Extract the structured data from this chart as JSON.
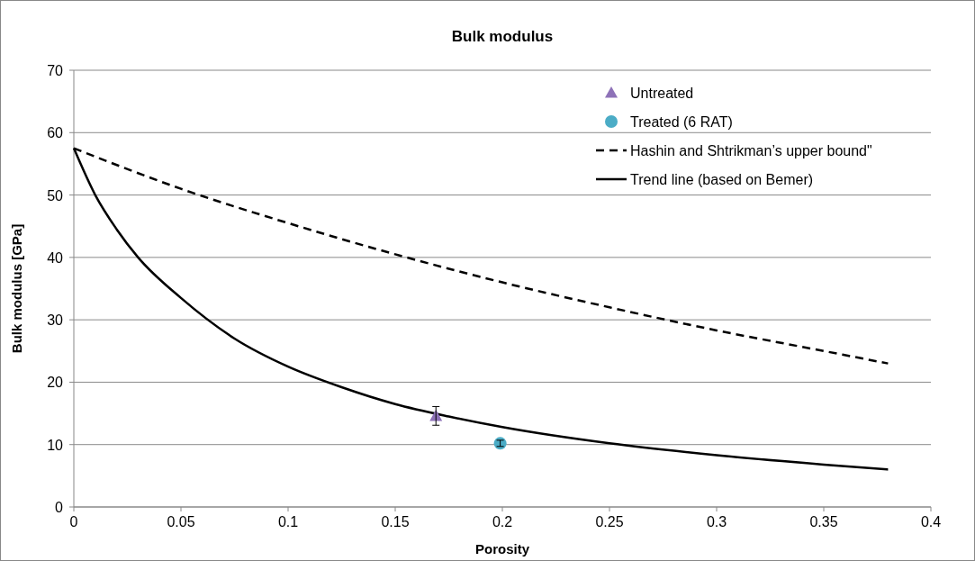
{
  "chart_data": {
    "type": "scatter",
    "title": "Bulk modulus",
    "xlabel": "Porosity",
    "ylabel": "Bulk modulus [GPa]",
    "xlim": [
      0,
      0.4
    ],
    "xticks": [
      0,
      0.05,
      0.1,
      0.15,
      0.2,
      0.25,
      0.3,
      0.35,
      0.4
    ],
    "ylim": [
      0,
      70
    ],
    "yticks": [
      0,
      10,
      20,
      30,
      40,
      50,
      60,
      70
    ],
    "grid": "y",
    "legend": "top right",
    "series": [
      {
        "name": "Untreated",
        "marker": "triangle",
        "color": "#8e72b8",
        "x": [
          0.169
        ],
        "values": [
          14.6
        ],
        "errors": [
          1.5
        ]
      },
      {
        "name": "Treated (6 RAT)",
        "marker": "circle",
        "color": "#4bacc6",
        "x": [
          0.199
        ],
        "values": [
          10.2
        ],
        "errors": [
          0.5
        ]
      },
      {
        "name": "Hashin and Shtrikman’s upper bound\"",
        "type": "line",
        "line_style": "dashed",
        "marker": "none",
        "color": "#000000",
        "x": [
          0,
          0.05,
          0.1,
          0.15,
          0.2,
          0.25,
          0.3,
          0.35,
          0.38
        ],
        "values": [
          57.5,
          51,
          45.5,
          40.5,
          36,
          32,
          28.3,
          25,
          23
        ]
      },
      {
        "name": "Trend line (based on Bemer)",
        "type": "line",
        "line_style": "solid",
        "marker": "none",
        "color": "#000000",
        "x": [
          0,
          0.01,
          0.02,
          0.03,
          0.05,
          0.075,
          0.1,
          0.125,
          0.15,
          0.175,
          0.2,
          0.25,
          0.3,
          0.35,
          0.38
        ],
        "values": [
          57.5,
          50,
          44.5,
          40,
          33.5,
          27,
          22.5,
          19.2,
          16.5,
          14.5,
          12.8,
          10.2,
          8.3,
          6.8,
          6
        ]
      }
    ]
  }
}
